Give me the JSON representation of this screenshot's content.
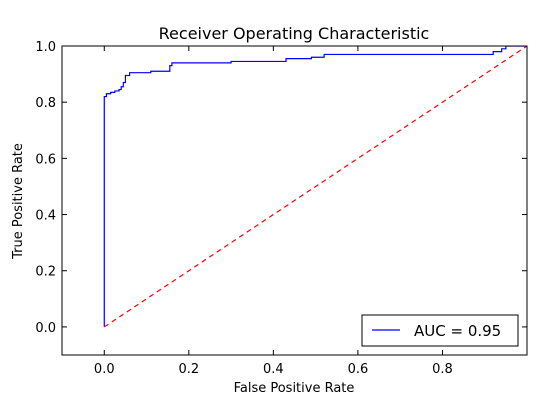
{
  "chart_data": {
    "type": "line",
    "title": "Receiver Operating Characteristic",
    "xlabel": "False Positive Rate",
    "ylabel": "True Positive Rate",
    "xlim": [
      -0.1,
      1.0
    ],
    "ylim": [
      -0.1,
      1.0
    ],
    "xticks": [
      0.0,
      0.2,
      0.4,
      0.6,
      0.8
    ],
    "xtick_labels": [
      "0.0",
      "0.2",
      "0.4",
      "0.6",
      "0.8"
    ],
    "yticks": [
      0.0,
      0.2,
      0.4,
      0.6,
      0.8,
      1.0
    ],
    "ytick_labels": [
      "0.0",
      "0.2",
      "0.4",
      "0.6",
      "0.8",
      "1.0"
    ],
    "grid": false,
    "legend_position": "lower-right",
    "series": [
      {
        "name": "AUC = 0.95",
        "color": "#0000ff",
        "style": "solid",
        "x": [
          0.0,
          0.0,
          0.005,
          0.005,
          0.015,
          0.015,
          0.025,
          0.025,
          0.035,
          0.035,
          0.04,
          0.04,
          0.045,
          0.045,
          0.05,
          0.05,
          0.06,
          0.06,
          0.11,
          0.11,
          0.155,
          0.155,
          0.16,
          0.16,
          0.3,
          0.3,
          0.43,
          0.43,
          0.49,
          0.49,
          0.52,
          0.52,
          0.92,
          0.92,
          0.94,
          0.94,
          0.95,
          0.95,
          1.0
        ],
        "y": [
          0.0,
          0.82,
          0.82,
          0.83,
          0.83,
          0.835,
          0.835,
          0.84,
          0.84,
          0.845,
          0.845,
          0.855,
          0.855,
          0.87,
          0.87,
          0.895,
          0.895,
          0.905,
          0.905,
          0.91,
          0.91,
          0.93,
          0.93,
          0.94,
          0.94,
          0.945,
          0.945,
          0.955,
          0.955,
          0.96,
          0.96,
          0.97,
          0.97,
          0.98,
          0.98,
          0.99,
          0.99,
          1.0,
          1.0
        ]
      },
      {
        "name": "",
        "color": "#ff0000",
        "style": "dashed",
        "x": [
          0.0,
          1.0
        ],
        "y": [
          0.0,
          1.0
        ]
      }
    ]
  }
}
